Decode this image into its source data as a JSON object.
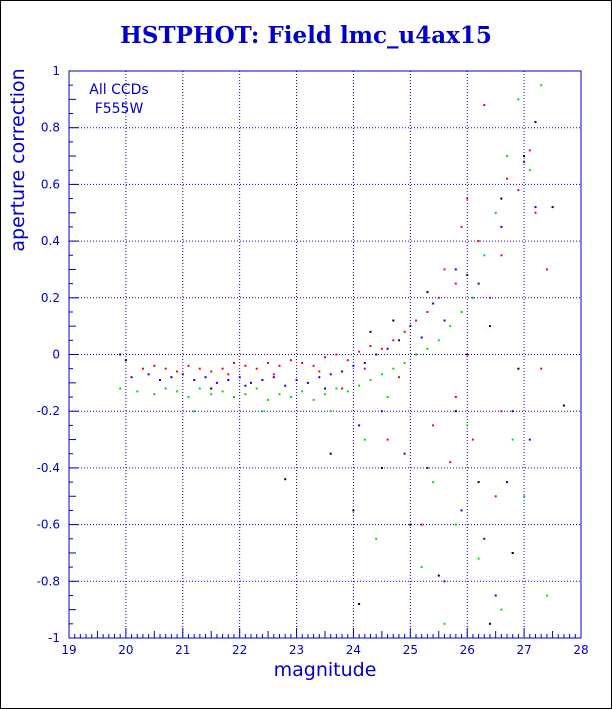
{
  "chart_data": {
    "type": "scatter",
    "title": "HSTPHOT: Field lmc_u4ax15",
    "xlabel": "magnitude",
    "ylabel": "aperture correction",
    "xlim": [
      19,
      28
    ],
    "ylim": [
      -1,
      1
    ],
    "x_ticks": [
      "19",
      "20",
      "21",
      "22",
      "23",
      "24",
      "25",
      "26",
      "27",
      "28"
    ],
    "y_ticks": [
      "-1",
      "-0.8",
      "-0.6",
      "-0.4",
      "-0.2",
      "0",
      "0.2",
      "0.4",
      "0.6",
      "0.8",
      "1"
    ],
    "grid": true,
    "annotations": [
      "All CCDs",
      "F555W"
    ],
    "colors": {
      "text": "#0000cc",
      "grid": "#0000cc",
      "series": [
        "#ff0000",
        "#0000ff",
        "#00dd00",
        "#000000"
      ]
    },
    "series": [
      {
        "color": "#ff0000",
        "points": [
          [
            20.3,
            -0.05
          ],
          [
            20.5,
            -0.04
          ],
          [
            20.7,
            -0.05
          ],
          [
            20.9,
            -0.06
          ],
          [
            21.1,
            -0.04
          ],
          [
            21.3,
            -0.05
          ],
          [
            21.5,
            -0.06
          ],
          [
            21.7,
            -0.05
          ],
          [
            21.9,
            -0.03
          ],
          [
            22.1,
            -0.04
          ],
          [
            22.3,
            -0.05
          ],
          [
            22.5,
            -0.03
          ],
          [
            22.7,
            -0.04
          ],
          [
            22.9,
            -0.02
          ],
          [
            23.1,
            -0.03
          ],
          [
            23.3,
            -0.04
          ],
          [
            23.5,
            -0.01
          ],
          [
            23.7,
            0.0
          ],
          [
            23.9,
            -0.02
          ],
          [
            24.1,
            0.01
          ],
          [
            24.3,
            0.03
          ],
          [
            24.5,
            0.02
          ],
          [
            24.7,
            0.05
          ],
          [
            24.9,
            0.08
          ],
          [
            25.1,
            0.12
          ],
          [
            25.3,
            0.15
          ],
          [
            25.5,
            0.2
          ],
          [
            25.6,
            0.3
          ],
          [
            25.8,
            0.25
          ],
          [
            25.9,
            0.45
          ],
          [
            26.0,
            0.55
          ],
          [
            26.2,
            0.4
          ],
          [
            26.4,
            0.2
          ],
          [
            26.6,
            0.35
          ],
          [
            26.7,
            0.62
          ],
          [
            26.9,
            0.58
          ],
          [
            27.1,
            0.72
          ],
          [
            27.2,
            0.5
          ],
          [
            27.4,
            0.3
          ],
          [
            26.3,
            0.88
          ],
          [
            25.4,
            -0.25
          ],
          [
            25.7,
            -0.38
          ],
          [
            26.1,
            -0.3
          ],
          [
            26.5,
            -0.5
          ],
          [
            26.8,
            -0.7
          ],
          [
            24.6,
            -0.3
          ],
          [
            25.2,
            -0.6
          ],
          [
            23.8,
            -0.12
          ],
          [
            22.6,
            -0.07
          ],
          [
            21.8,
            -0.07
          ],
          [
            24.2,
            -0.05
          ],
          [
            24.8,
            -0.08
          ],
          [
            23.4,
            -0.06
          ],
          [
            25.8,
            -0.15
          ],
          [
            26.6,
            -0.2
          ],
          [
            27.3,
            -0.05
          ]
        ]
      },
      {
        "color": "#0000ff",
        "points": [
          [
            20.1,
            -0.08
          ],
          [
            20.4,
            -0.07
          ],
          [
            20.6,
            -0.09
          ],
          [
            20.8,
            -0.08
          ],
          [
            21.0,
            -0.07
          ],
          [
            21.2,
            -0.09
          ],
          [
            21.4,
            -0.08
          ],
          [
            21.6,
            -0.1
          ],
          [
            21.8,
            -0.09
          ],
          [
            22.0,
            -0.08
          ],
          [
            22.2,
            -0.1
          ],
          [
            22.4,
            -0.09
          ],
          [
            22.6,
            -0.08
          ],
          [
            22.8,
            -0.11
          ],
          [
            23.0,
            -0.09
          ],
          [
            23.2,
            -0.1
          ],
          [
            23.4,
            -0.08
          ],
          [
            23.6,
            -0.07
          ],
          [
            23.8,
            -0.06
          ],
          [
            24.0,
            -0.04
          ],
          [
            24.2,
            -0.03
          ],
          [
            24.4,
            0.0
          ],
          [
            24.6,
            0.02
          ],
          [
            24.8,
            0.05
          ],
          [
            25.0,
            0.1
          ],
          [
            25.2,
            0.06
          ],
          [
            25.4,
            0.18
          ],
          [
            25.6,
            0.12
          ],
          [
            25.8,
            0.3
          ],
          [
            26.0,
            0.0
          ],
          [
            26.2,
            0.25
          ],
          [
            26.4,
            0.1
          ],
          [
            26.6,
            0.45
          ],
          [
            26.8,
            -0.2
          ],
          [
            27.0,
            0.68
          ],
          [
            27.2,
            0.52
          ],
          [
            25.3,
            -0.4
          ],
          [
            25.9,
            -0.55
          ],
          [
            26.3,
            -0.65
          ],
          [
            26.7,
            -0.45
          ],
          [
            24.5,
            -0.2
          ],
          [
            24.9,
            -0.35
          ],
          [
            24.1,
            -0.25
          ],
          [
            25.6,
            -0.8
          ],
          [
            26.5,
            -0.85
          ],
          [
            27.1,
            -0.3
          ],
          [
            23.5,
            -0.12
          ],
          [
            22.1,
            -0.11
          ]
        ]
      },
      {
        "color": "#00dd00",
        "points": [
          [
            19.9,
            -0.12
          ],
          [
            20.2,
            -0.13
          ],
          [
            20.5,
            -0.14
          ],
          [
            20.7,
            -0.12
          ],
          [
            20.9,
            -0.13
          ],
          [
            21.1,
            -0.15
          ],
          [
            21.3,
            -0.12
          ],
          [
            21.5,
            -0.14
          ],
          [
            21.7,
            -0.13
          ],
          [
            21.9,
            -0.15
          ],
          [
            22.1,
            -0.14
          ],
          [
            22.3,
            -0.12
          ],
          [
            22.5,
            -0.16
          ],
          [
            22.7,
            -0.14
          ],
          [
            22.9,
            -0.15
          ],
          [
            23.1,
            -0.13
          ],
          [
            23.3,
            -0.16
          ],
          [
            23.5,
            -0.14
          ],
          [
            23.7,
            -0.12
          ],
          [
            23.9,
            -0.13
          ],
          [
            24.1,
            -0.11
          ],
          [
            24.3,
            -0.09
          ],
          [
            24.5,
            -0.07
          ],
          [
            24.7,
            -0.05
          ],
          [
            24.9,
            -0.03
          ],
          [
            25.1,
            0.0
          ],
          [
            25.3,
            0.02
          ],
          [
            25.5,
            0.05
          ],
          [
            25.7,
            0.1
          ],
          [
            25.9,
            0.15
          ],
          [
            26.1,
            0.2
          ],
          [
            26.3,
            0.35
          ],
          [
            26.5,
            0.5
          ],
          [
            26.7,
            0.7
          ],
          [
            26.9,
            0.9
          ],
          [
            27.3,
            0.95
          ],
          [
            27.1,
            0.65
          ],
          [
            26.0,
            -0.25
          ],
          [
            25.4,
            -0.45
          ],
          [
            25.8,
            -0.6
          ],
          [
            26.2,
            -0.72
          ],
          [
            26.6,
            -0.9
          ],
          [
            27.0,
            -0.5
          ],
          [
            24.6,
            -0.15
          ],
          [
            24.2,
            -0.3
          ],
          [
            23.6,
            -0.2
          ],
          [
            22.4,
            -0.2
          ],
          [
            21.2,
            -0.2
          ],
          [
            25.2,
            -0.75
          ],
          [
            24.4,
            -0.65
          ],
          [
            26.8,
            -0.3
          ],
          [
            27.4,
            -0.85
          ],
          [
            25.6,
            -0.95
          ]
        ]
      },
      {
        "color": "#000000",
        "points": [
          [
            19.9,
            0.0
          ],
          [
            20.0,
            -0.02
          ],
          [
            21.5,
            -0.12
          ],
          [
            22.8,
            -0.44
          ],
          [
            23.6,
            -0.35
          ],
          [
            24.0,
            -0.55
          ],
          [
            24.1,
            -0.88
          ],
          [
            24.5,
            -0.4
          ],
          [
            24.7,
            0.12
          ],
          [
            25.0,
            -0.6
          ],
          [
            25.3,
            0.22
          ],
          [
            25.5,
            -0.78
          ],
          [
            25.8,
            -0.2
          ],
          [
            26.0,
            0.28
          ],
          [
            26.2,
            -0.45
          ],
          [
            26.4,
            -0.95
          ],
          [
            26.6,
            0.55
          ],
          [
            26.8,
            -0.7
          ],
          [
            27.0,
            0.7
          ],
          [
            27.2,
            0.82
          ],
          [
            27.5,
            0.52
          ],
          [
            27.7,
            -0.18
          ],
          [
            26.9,
            -0.05
          ],
          [
            24.3,
            0.08
          ]
        ]
      }
    ]
  }
}
